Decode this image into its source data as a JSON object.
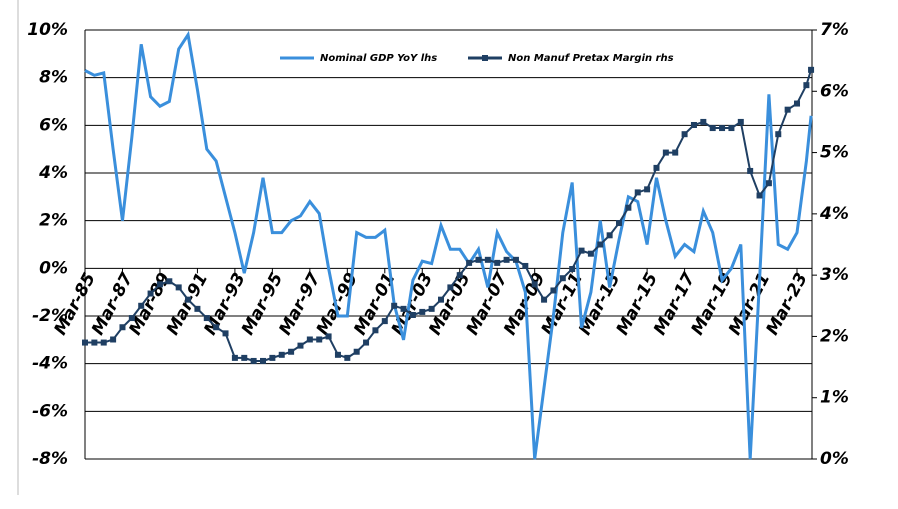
{
  "chart_data": {
    "type": "line",
    "x": [
      1985,
      1985.5,
      1986,
      1986.5,
      1987,
      1987.5,
      1988,
      1988.5,
      1989,
      1989.5,
      1990,
      1990.5,
      1991,
      1991.5,
      1992,
      1992.5,
      1993,
      1993.5,
      1994,
      1994.5,
      1995,
      1995.5,
      1996,
      1996.5,
      1997,
      1997.5,
      1998,
      1998.5,
      1999,
      1999.5,
      2000,
      2000.5,
      2001,
      2001.5,
      2002,
      2002.5,
      2003,
      2003.5,
      2004,
      2004.5,
      2005,
      2005.5,
      2006,
      2006.5,
      2007,
      2007.5,
      2008,
      2008.5,
      2009,
      2009.5,
      2010,
      2010.5,
      2011,
      2011.5,
      2012,
      2012.5,
      2013,
      2013.5,
      2014,
      2014.5,
      2015,
      2015.5,
      2016,
      2016.5,
      2017,
      2017.5,
      2018,
      2018.5,
      2019,
      2019.5,
      2020,
      2020.5,
      2021,
      2021.5,
      2022,
      2022.5,
      2023,
      2023.5,
      2023.75
    ],
    "series": [
      {
        "name": "Nominal GDP YoY lhs",
        "color": "#3a8fdc",
        "values": [
          8.3,
          8.1,
          8.2,
          5.0,
          2.0,
          5.5,
          9.4,
          7.2,
          6.8,
          7.0,
          9.2,
          9.8,
          7.5,
          5.0,
          4.5,
          3.0,
          1.5,
          -0.2,
          1.5,
          3.8,
          1.5,
          1.5,
          2.0,
          2.2,
          2.8,
          2.3,
          0.0,
          -2.0,
          -2.0,
          1.5,
          1.3,
          1.3,
          1.6,
          -1.5,
          -3.0,
          -0.5,
          0.3,
          0.2,
          1.8,
          0.8,
          0.8,
          0.2,
          0.8,
          -0.8,
          1.5,
          0.7,
          0.3,
          -1.0,
          -8.0,
          -5.0,
          -2.0,
          1.5,
          3.6,
          -2.5,
          -1.0,
          2.0,
          -0.8,
          1.2,
          3.0,
          2.8,
          1.0,
          3.8,
          2.0,
          0.5,
          1.0,
          0.7,
          2.4,
          1.5,
          -0.5,
          0.0,
          1.0,
          -8.0,
          -0.5,
          7.3,
          1.0,
          0.8,
          1.5,
          4.5,
          6.4
        ]
      },
      {
        "name": "Non Manuf Pretax Margin rhs",
        "color": "#1f3f63",
        "axis": "y2",
        "values": [
          1.9,
          1.9,
          1.9,
          1.95,
          2.15,
          2.3,
          2.5,
          2.7,
          2.85,
          2.9,
          2.8,
          2.6,
          2.45,
          2.3,
          2.15,
          2.05,
          1.65,
          1.65,
          1.6,
          1.6,
          1.65,
          1.7,
          1.75,
          1.85,
          1.95,
          1.95,
          2.0,
          1.7,
          1.65,
          1.75,
          1.9,
          2.1,
          2.25,
          2.5,
          2.45,
          2.35,
          2.4,
          2.45,
          2.6,
          2.8,
          3.0,
          3.2,
          3.25,
          3.25,
          3.2,
          3.25,
          3.25,
          3.15,
          2.85,
          2.6,
          2.75,
          2.95,
          3.1,
          3.4,
          3.35,
          3.5,
          3.65,
          3.85,
          4.1,
          4.35,
          4.4,
          4.75,
          5.0,
          5.0,
          5.3,
          5.45,
          5.5,
          5.4,
          5.4,
          5.4,
          5.5,
          4.7,
          4.3,
          4.5,
          5.3,
          5.7,
          5.8,
          6.1,
          6.35
        ]
      }
    ],
    "xlim": [
      1985,
      2023.8
    ],
    "xticks": [
      {
        "value": 1985,
        "label": "Mar-85"
      },
      {
        "value": 1987,
        "label": "Mar-87"
      },
      {
        "value": 1989,
        "label": "Mar-89"
      },
      {
        "value": 1991,
        "label": "Mar-91"
      },
      {
        "value": 1993,
        "label": "Mar-93"
      },
      {
        "value": 1995,
        "label": "Mar-95"
      },
      {
        "value": 1997,
        "label": "Mar-97"
      },
      {
        "value": 1999,
        "label": "Mar-99"
      },
      {
        "value": 2001,
        "label": "Mar-01"
      },
      {
        "value": 2003,
        "label": "Mar-03"
      },
      {
        "value": 2005,
        "label": "Mar-05"
      },
      {
        "value": 2007,
        "label": "Mar-07"
      },
      {
        "value": 2009,
        "label": "Mar-09"
      },
      {
        "value": 2011,
        "label": "Mar-11"
      },
      {
        "value": 2013,
        "label": "Mar-13"
      },
      {
        "value": 2015,
        "label": "Mar-15"
      },
      {
        "value": 2017,
        "label": "Mar-17"
      },
      {
        "value": 2019,
        "label": "Mar-19"
      },
      {
        "value": 2021,
        "label": "Mar-21"
      },
      {
        "value": 2023,
        "label": "Mar-23"
      }
    ],
    "ylim": [
      -8,
      10
    ],
    "yticks": [
      {
        "value": -8,
        "label": "-8%"
      },
      {
        "value": -6,
        "label": "-6%"
      },
      {
        "value": -4,
        "label": "-4%"
      },
      {
        "value": -2,
        "label": "-2%"
      },
      {
        "value": 0,
        "label": "0%"
      },
      {
        "value": 2,
        "label": "2%"
      },
      {
        "value": 4,
        "label": "4%"
      },
      {
        "value": 6,
        "label": "6%"
      },
      {
        "value": 8,
        "label": "8%"
      },
      {
        "value": 10,
        "label": "10%"
      }
    ],
    "y2lim": [
      0,
      7
    ],
    "y2ticks": [
      {
        "value": 0,
        "label": "0%"
      },
      {
        "value": 1,
        "label": "1%"
      },
      {
        "value": 2,
        "label": "2%"
      },
      {
        "value": 3,
        "label": "3%"
      },
      {
        "value": 4,
        "label": "4%"
      },
      {
        "value": 5,
        "label": "5%"
      },
      {
        "value": 6,
        "label": "6%"
      },
      {
        "value": 7,
        "label": "7%"
      }
    ],
    "grid": true
  }
}
